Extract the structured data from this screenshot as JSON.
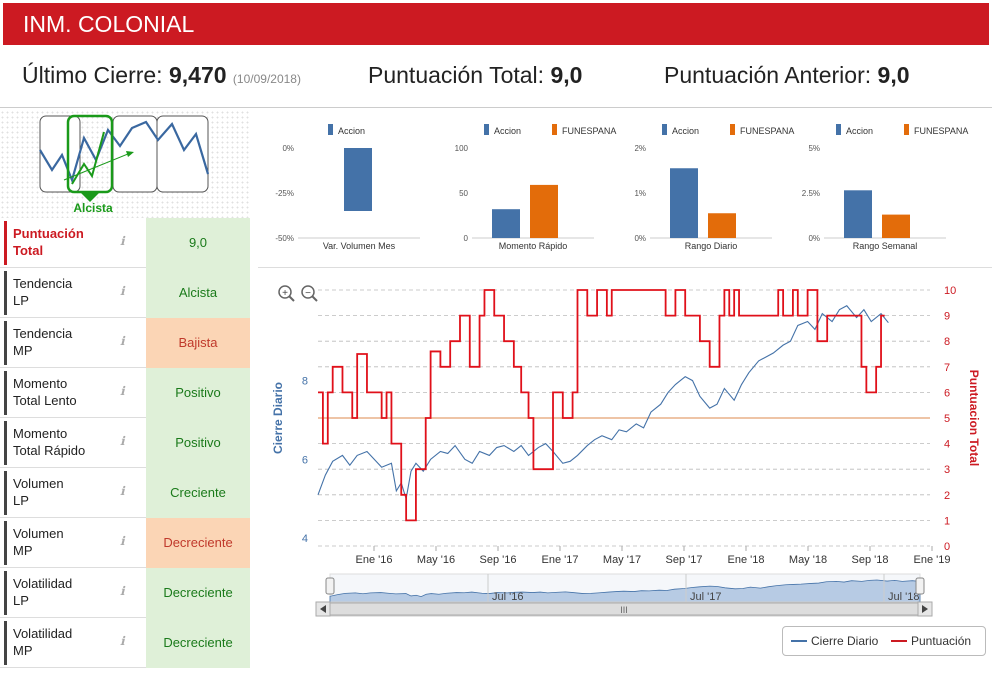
{
  "header": {
    "title": "INM. COLONIAL"
  },
  "summary": {
    "last_close_label": "Último Cierre:",
    "last_close_value": "9,470",
    "last_close_date": "(10/09/2018)",
    "total_score_label": "Puntuación Total:",
    "total_score_value": "9,0",
    "prev_score_label": "Puntuación Anterior:",
    "prev_score_value": "9,0"
  },
  "trend_widget": {
    "label": "Alcista"
  },
  "indicators": [
    {
      "label_line1": "Puntuación",
      "label_line2": "Total",
      "value": "9,0",
      "status": "green"
    },
    {
      "label_line1": "Tendencia",
      "label_line2": "LP",
      "value": "Alcista",
      "status": "green"
    },
    {
      "label_line1": "Tendencia",
      "label_line2": "MP",
      "value": "Bajista",
      "status": "orange"
    },
    {
      "label_line1": "Momento",
      "label_line2": "Total Lento",
      "value": "Positivo",
      "status": "green"
    },
    {
      "label_line1": "Momento",
      "label_line2": "Total Rápido",
      "value": "Positivo",
      "status": "green"
    },
    {
      "label_line1": "Volumen",
      "label_line2": "LP",
      "value": "Creciente",
      "status": "green"
    },
    {
      "label_line1": "Volumen",
      "label_line2": "MP",
      "value": "Decreciente",
      "status": "orange"
    },
    {
      "label_line1": "Volatilidad",
      "label_line2": "LP",
      "value": "Decreciente",
      "status": "green"
    },
    {
      "label_line1": "Volatilidad",
      "label_line2": "MP",
      "value": "Decreciente",
      "status": "green"
    }
  ],
  "info_icon": "ℹ",
  "colors": {
    "accent": "#cc1a22",
    "series_blue": "#4472a8",
    "series_orange": "#e36c0a",
    "green": "#1a9a1a"
  },
  "chart_data": [
    {
      "type": "bar",
      "title": "Var. Volumen Mes",
      "legend": [
        "Accion"
      ],
      "categories": [
        "Var. Volumen Mes"
      ],
      "series": [
        {
          "name": "Accion",
          "values": [
            -35
          ]
        }
      ],
      "ylim": [
        -50,
        0
      ],
      "yticks": [
        "0%",
        "-25%",
        "-50%"
      ]
    },
    {
      "type": "bar",
      "title": "Momento Rápido",
      "legend": [
        "Accion",
        "FUNESPANA"
      ],
      "categories": [
        "Momento Rápido"
      ],
      "series": [
        {
          "name": "Accion",
          "values": [
            32
          ]
        },
        {
          "name": "FUNESPANA",
          "values": [
            59
          ]
        }
      ],
      "ylim": [
        0,
        100
      ],
      "yticks": [
        "100",
        "50",
        "0"
      ]
    },
    {
      "type": "bar",
      "title": "Rango Diario",
      "legend": [
        "Accion",
        "FUNESPANA"
      ],
      "categories": [
        "Rango Diario"
      ],
      "series": [
        {
          "name": "Accion",
          "values": [
            1.55
          ]
        },
        {
          "name": "FUNESPANA",
          "values": [
            0.55
          ]
        }
      ],
      "ylim": [
        0,
        2
      ],
      "yticks": [
        "2%",
        "1%",
        "0%"
      ]
    },
    {
      "type": "bar",
      "title": "Rango Semanal",
      "legend": [
        "Accion",
        "FUNESPANA"
      ],
      "categories": [
        "Rango Semanal"
      ],
      "series": [
        {
          "name": "Accion",
          "values": [
            2.65
          ]
        },
        {
          "name": "FUNESPANA",
          "values": [
            1.3
          ]
        }
      ],
      "ylim": [
        0,
        5
      ],
      "yticks": [
        "5%",
        "2.5%",
        "0%"
      ]
    },
    {
      "type": "line",
      "title": "",
      "ylabel_left": "Cierre Diario",
      "ylabel_right": "Puntuacion Total",
      "ylim_left": [
        3.8,
        10.3
      ],
      "yticks_left": [
        "8",
        "6",
        "4"
      ],
      "ylim_right": [
        0,
        10
      ],
      "yticks_right": [
        "10",
        "9",
        "8",
        "7",
        "6",
        "5",
        "4",
        "3",
        "2",
        "1",
        "0"
      ],
      "xticks": [
        "Ene '16",
        "May '16",
        "Sep '16",
        "Ene '17",
        "May '17",
        "Sep '17",
        "Ene '18",
        "May '18",
        "Sep '18",
        "Ene '19"
      ],
      "reference_line": 5,
      "series": [
        {
          "name": "Cierre Diario",
          "points": [
            [
              0,
              5.1
            ],
            [
              0.3,
              5.6
            ],
            [
              0.6,
              5.95
            ],
            [
              1,
              6.1
            ],
            [
              1.3,
              5.85
            ],
            [
              1.6,
              6.1
            ],
            [
              2,
              6.2
            ],
            [
              2.3,
              6.0
            ],
            [
              2.6,
              5.8
            ],
            [
              3,
              5.9
            ],
            [
              3.2,
              5.2
            ],
            [
              3.4,
              5.4
            ],
            [
              3.6,
              5.0
            ],
            [
              3.8,
              5.7
            ],
            [
              4,
              5.9
            ],
            [
              4.3,
              5.7
            ],
            [
              4.6,
              6.0
            ],
            [
              5,
              6.2
            ],
            [
              5.3,
              6.15
            ],
            [
              5.6,
              6.35
            ],
            [
              6,
              6.0
            ],
            [
              6.3,
              5.9
            ],
            [
              6.6,
              6.2
            ],
            [
              7,
              6.1
            ],
            [
              7.3,
              6.3
            ],
            [
              7.6,
              6.35
            ],
            [
              8,
              6.2
            ],
            [
              8.3,
              6.35
            ],
            [
              8.6,
              6.1
            ],
            [
              9,
              6.3
            ],
            [
              9.3,
              6.4
            ],
            [
              9.6,
              6.2
            ],
            [
              10,
              5.9
            ],
            [
              10.3,
              5.95
            ],
            [
              10.6,
              6.1
            ],
            [
              11,
              6.35
            ],
            [
              11.3,
              6.5
            ],
            [
              11.6,
              6.6
            ],
            [
              12,
              6.5
            ],
            [
              12.3,
              6.75
            ],
            [
              12.6,
              6.7
            ],
            [
              13,
              6.9
            ],
            [
              13.3,
              6.8
            ],
            [
              13.6,
              7.2
            ],
            [
              14,
              7.4
            ],
            [
              14.3,
              7.7
            ],
            [
              14.6,
              7.9
            ],
            [
              15,
              8.1
            ],
            [
              15.3,
              8.0
            ],
            [
              15.6,
              7.6
            ],
            [
              16,
              7.3
            ],
            [
              16.3,
              7.4
            ],
            [
              16.6,
              7.8
            ],
            [
              17,
              7.5
            ],
            [
              17.3,
              7.9
            ],
            [
              17.6,
              8.2
            ],
            [
              18,
              8.5
            ],
            [
              18.3,
              8.6
            ],
            [
              18.6,
              8.7
            ],
            [
              19,
              8.9
            ],
            [
              19.3,
              9.0
            ],
            [
              19.6,
              9.4
            ],
            [
              20,
              9.5
            ],
            [
              20.3,
              9.3
            ],
            [
              20.6,
              9.7
            ],
            [
              21,
              9.5
            ],
            [
              21.3,
              9.8
            ],
            [
              21.6,
              9.9
            ],
            [
              22,
              9.6
            ],
            [
              22.3,
              9.8
            ],
            [
              22.6,
              9.5
            ],
            [
              23,
              9.7
            ],
            [
              23.3,
              9.47
            ]
          ]
        },
        {
          "name": "Puntuación",
          "steps": [
            [
              0,
              6
            ],
            [
              0.2,
              4
            ],
            [
              0.4,
              6
            ],
            [
              0.6,
              7
            ],
            [
              1,
              6
            ],
            [
              1.4,
              5
            ],
            [
              1.6,
              7.5
            ],
            [
              2,
              6
            ],
            [
              2.6,
              5
            ],
            [
              2.8,
              6
            ],
            [
              3,
              4
            ],
            [
              3.4,
              2
            ],
            [
              3.6,
              1
            ],
            [
              4,
              3
            ],
            [
              4.4,
              5
            ],
            [
              4.6,
              7.6
            ],
            [
              5,
              7
            ],
            [
              5.4,
              8
            ],
            [
              5.8,
              9
            ],
            [
              6.2,
              7
            ],
            [
              6.6,
              9
            ],
            [
              6.8,
              10
            ],
            [
              7.2,
              9
            ],
            [
              7.6,
              8
            ],
            [
              8,
              7
            ],
            [
              8.3,
              6
            ],
            [
              8.6,
              5
            ],
            [
              8.8,
              3
            ],
            [
              9.2,
              3
            ],
            [
              9.6,
              6
            ],
            [
              10,
              5
            ],
            [
              10.4,
              6
            ],
            [
              10.6,
              10
            ],
            [
              11,
              9
            ],
            [
              11.4,
              10
            ],
            [
              11.8,
              9
            ],
            [
              12,
              10
            ],
            [
              14.2,
              9
            ],
            [
              14.6,
              10
            ],
            [
              15,
              9
            ],
            [
              15.6,
              8
            ],
            [
              16,
              7
            ],
            [
              16.4,
              9
            ],
            [
              16.6,
              10
            ],
            [
              16.8,
              9
            ],
            [
              17,
              10
            ],
            [
              17.2,
              9
            ],
            [
              18.8,
              10
            ],
            [
              19,
              9
            ],
            [
              19.4,
              10
            ],
            [
              19.6,
              9
            ],
            [
              20,
              10
            ],
            [
              20.4,
              8
            ],
            [
              20.8,
              9
            ],
            [
              22.2,
              7
            ],
            [
              22.4,
              6
            ],
            [
              22.8,
              7
            ],
            [
              23,
              9
            ]
          ]
        }
      ],
      "navigator_ticks": [
        "Jul '16",
        "Jul '17",
        "Jul '18"
      ],
      "legend": [
        "Cierre Diario",
        "Puntuación"
      ]
    }
  ]
}
